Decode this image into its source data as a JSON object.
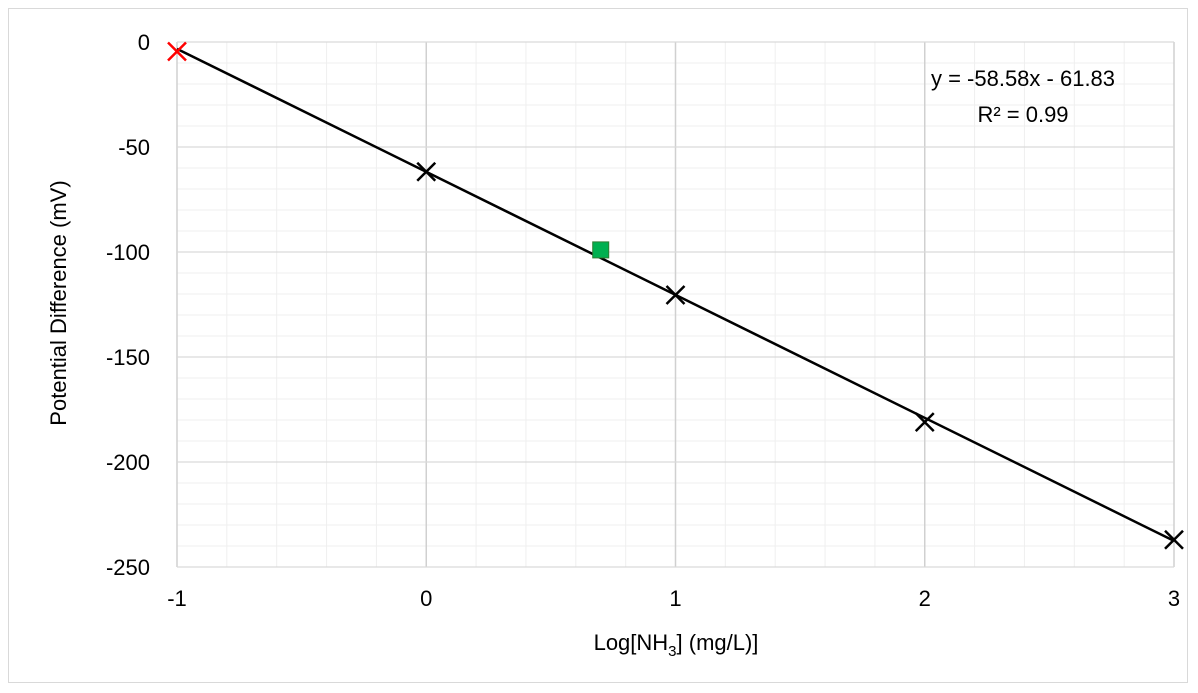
{
  "chart_data": {
    "type": "scatter",
    "xlabel": "Log[NH3] (mg/L)]",
    "xlabel_parts": {
      "pre": "Log[NH",
      "sub": "3",
      "post": "] (mg/L)]"
    },
    "ylabel": "Potential Difference (mV)",
    "xlim": [
      -1,
      3
    ],
    "ylim": [
      -250,
      0
    ],
    "x_major_ticks": [
      -1,
      0,
      1,
      2,
      3
    ],
    "y_major_ticks": [
      0,
      -50,
      -100,
      -150,
      -200,
      -250
    ],
    "x_minor_step": 0.2,
    "y_minor_step": 10,
    "grid": true,
    "series": [
      {
        "marker": "x",
        "color": "#000000",
        "points": [
          {
            "x": 0,
            "y": -61.8
          },
          {
            "x": 1,
            "y": -120.5
          },
          {
            "x": 2,
            "y": -181
          },
          {
            "x": 3,
            "y": -237
          }
        ]
      },
      {
        "marker": "x",
        "color": "#ff0000",
        "points": [
          {
            "x": -1,
            "y": -4.5
          }
        ]
      },
      {
        "marker": "square",
        "color": "#00b050",
        "points": [
          {
            "x": 0.7,
            "y": -99
          }
        ]
      }
    ],
    "trendline": {
      "slope": -58.58,
      "intercept": -61.83,
      "x_range": [
        -1,
        3
      ],
      "color": "#000000",
      "equation": "y = -58.58x - 61.83",
      "r_squared": "R² = 0.99"
    }
  }
}
